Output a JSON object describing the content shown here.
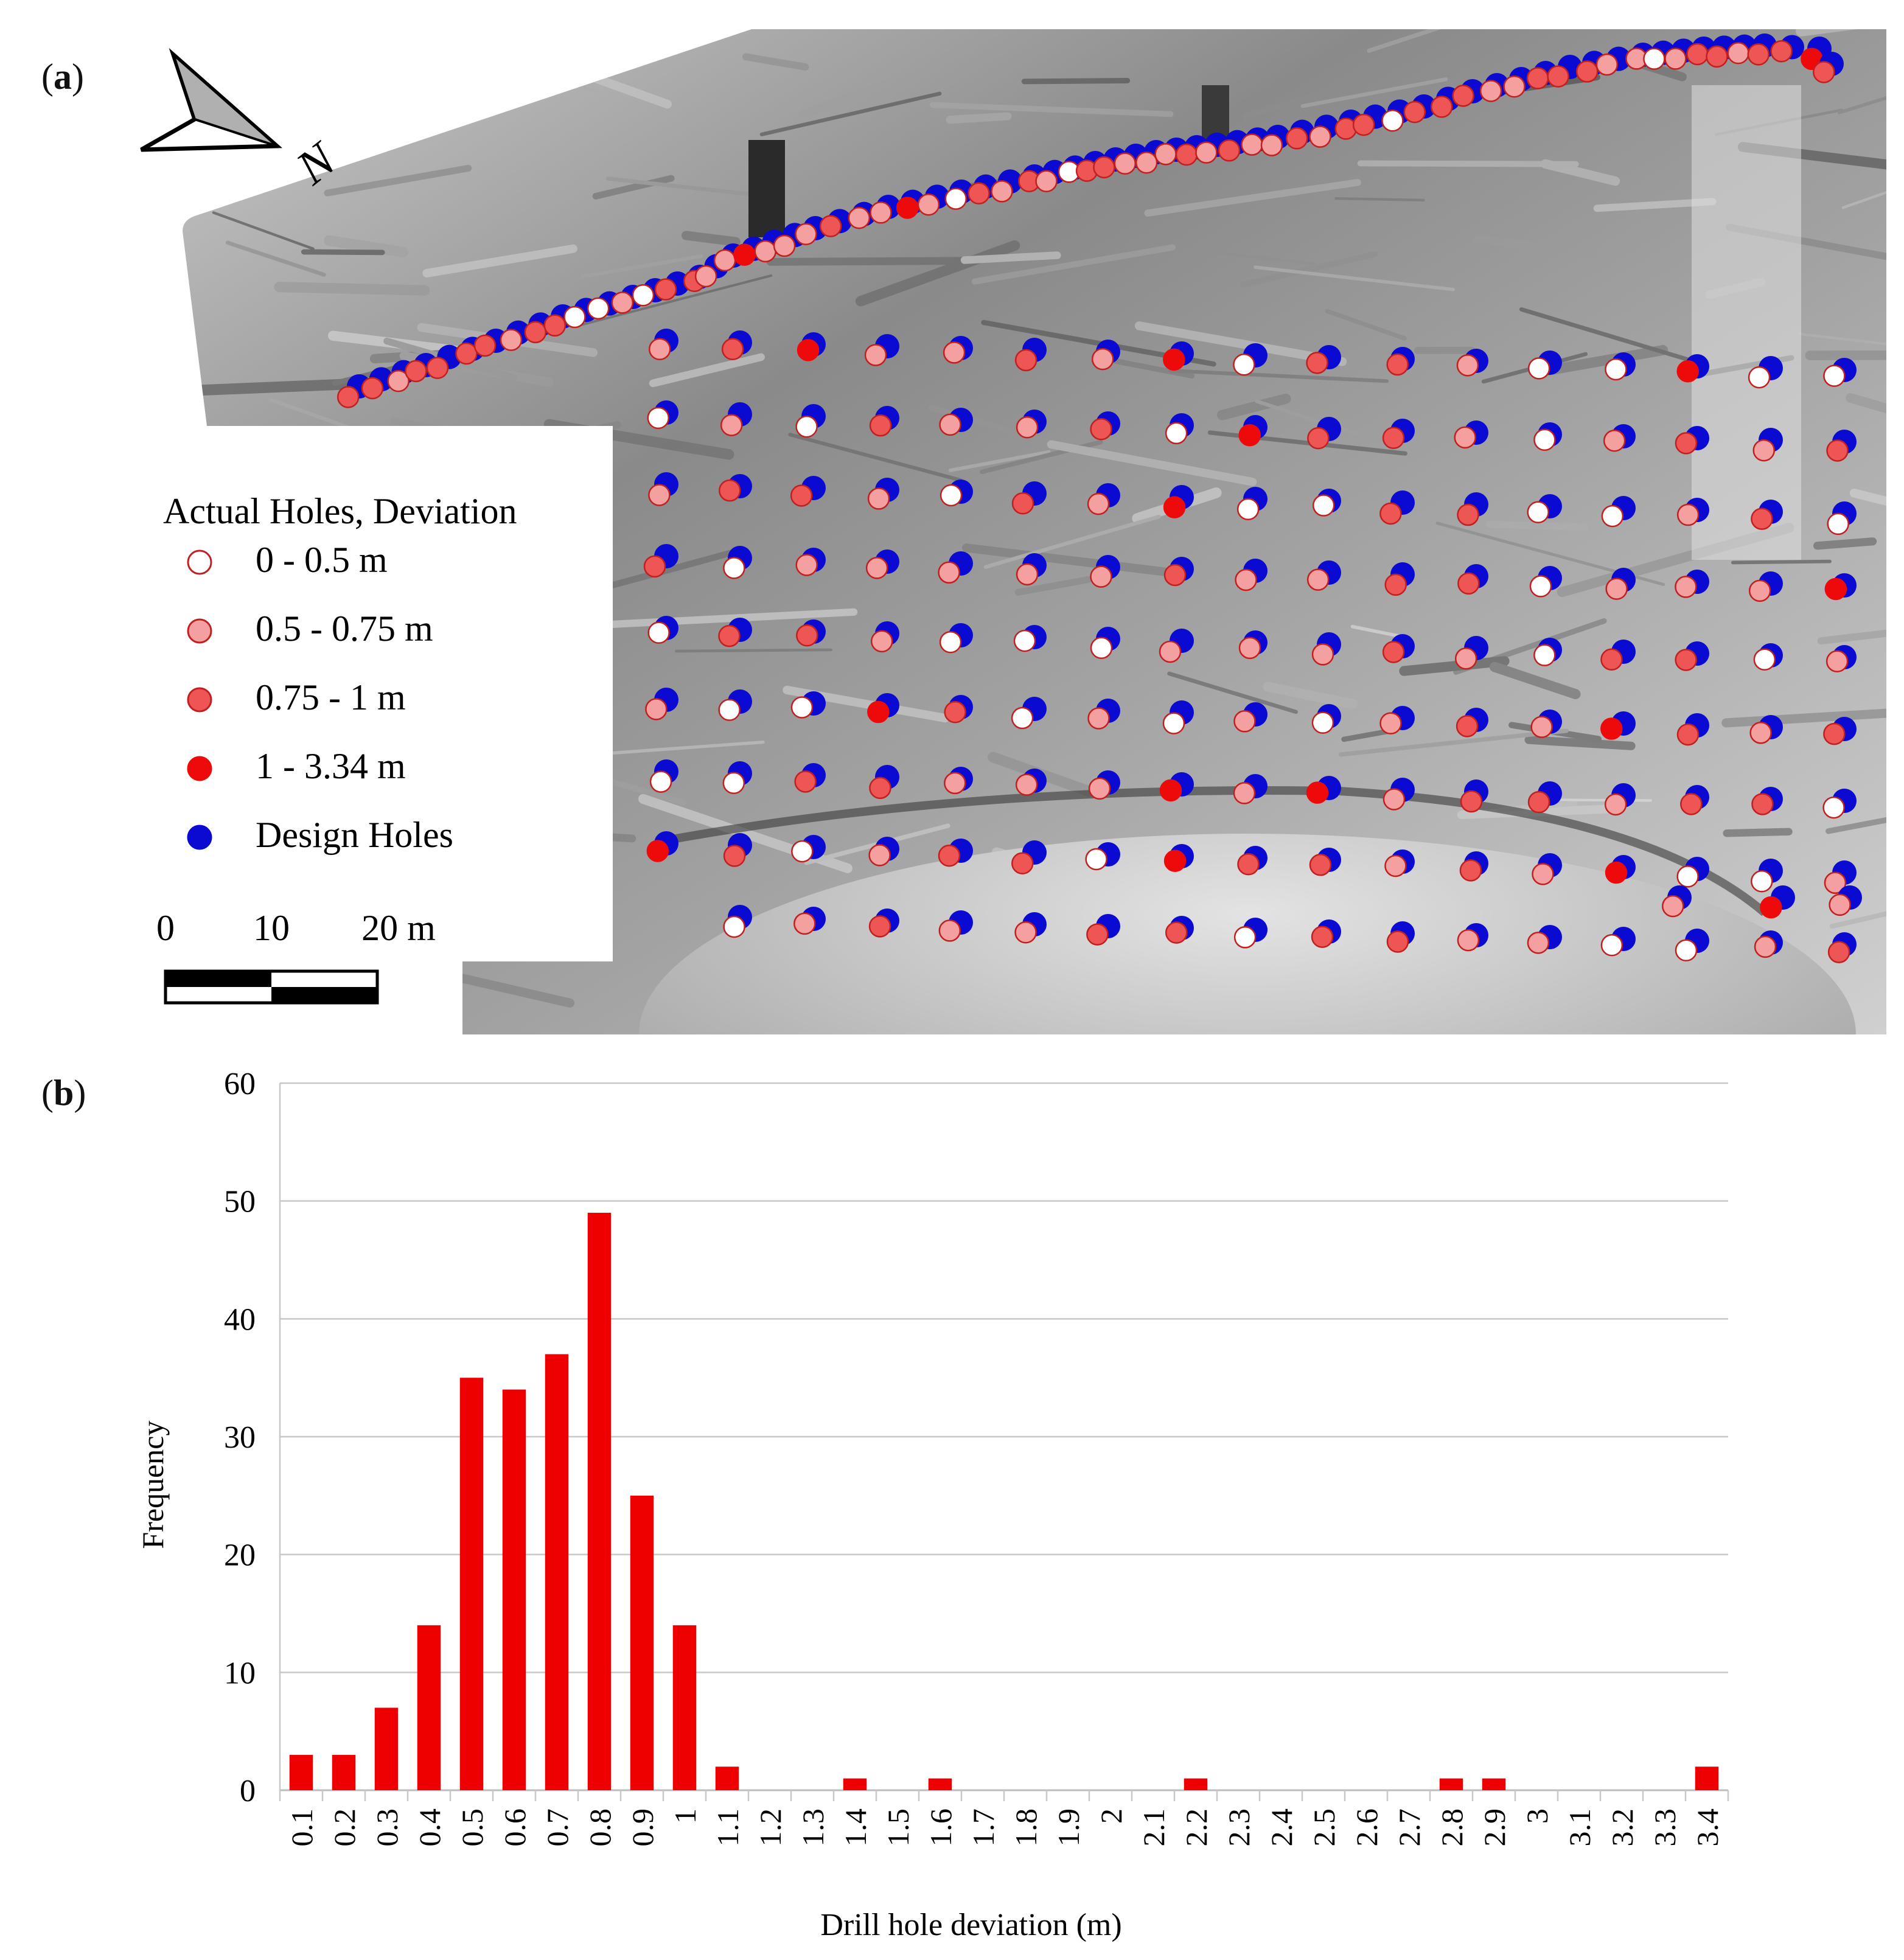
{
  "panels": {
    "a_label": "a",
    "b_label": "b"
  },
  "map": {
    "north_label": "N",
    "legend": {
      "title": "Actual Holes, Deviation",
      "items": [
        {
          "label": "0 - 0.5 m",
          "color": "#ffffff",
          "stroke": "#c02020"
        },
        {
          "label": "0.5 - 0.75 m",
          "color": "#f5a0a0",
          "stroke": "#c02020"
        },
        {
          "label": "0.75 - 1 m",
          "color": "#ee5555",
          "stroke": "#c02020"
        },
        {
          "label": "1 - 3.34 m",
          "color": "#ee0a0a",
          "stroke": "#ee0a0a"
        },
        {
          "label": "Design Holes",
          "color": "#0a0ad2",
          "stroke": "#0a0ad2"
        }
      ]
    },
    "scale_bar": {
      "ticks": [
        "0",
        "10",
        "20 m"
      ]
    },
    "colors": {
      "design": "#0a0ad2",
      "background_dark": "#6e6e6e",
      "background_light": "#bdbdbd"
    }
  },
  "chart_data": {
    "type": "bar",
    "title": "",
    "xlabel": "Drill hole deviation (m)",
    "ylabel": "Frequency",
    "ylim": [
      0,
      60
    ],
    "yticks": [
      0,
      10,
      20,
      30,
      40,
      50,
      60
    ],
    "grid": true,
    "bar_color": "#ee0000",
    "categories": [
      "0.1",
      "0.2",
      "0.3",
      "0.4",
      "0.5",
      "0.6",
      "0.7",
      "0.8",
      "0.9",
      "1",
      "1.1",
      "1.2",
      "1.3",
      "1.4",
      "1.5",
      "1.6",
      "1.7",
      "1.8",
      "1.9",
      "2",
      "2.1",
      "2.2",
      "2.3",
      "2.4",
      "2.5",
      "2.6",
      "2.7",
      "2.8",
      "2.9",
      "3",
      "3.1",
      "3.2",
      "3.3",
      "3.4"
    ],
    "values": [
      3,
      3,
      7,
      14,
      35,
      34,
      37,
      49,
      25,
      14,
      2,
      0,
      0,
      1,
      0,
      1,
      0,
      0,
      0,
      0,
      0,
      1,
      0,
      0,
      0,
      0,
      0,
      1,
      1,
      0,
      0,
      0,
      0,
      2
    ]
  }
}
